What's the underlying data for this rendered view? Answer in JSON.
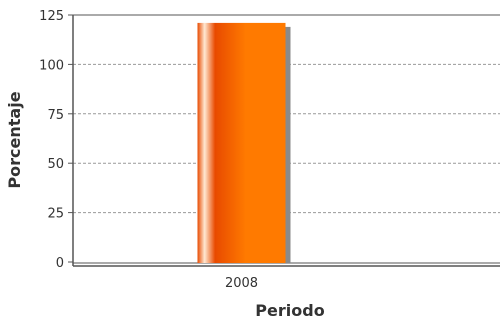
{
  "chart_data": {
    "type": "bar",
    "categories": [
      "2008"
    ],
    "values": [
      121
    ],
    "xlabel": "Periodo",
    "ylabel": "Porcentaje",
    "ylim": [
      0,
      125
    ],
    "yticks": [
      0,
      25,
      50,
      75,
      100,
      125
    ],
    "grid": true,
    "legend": "none",
    "colors": {
      "bar_dark": "#e84a00",
      "bar_mid": "#ff7a00",
      "bar_light": "#ffe8d2",
      "bar_shadow": "#8a8a8a",
      "grid": "#999999",
      "axis": "#555555",
      "text": "#333333"
    }
  }
}
